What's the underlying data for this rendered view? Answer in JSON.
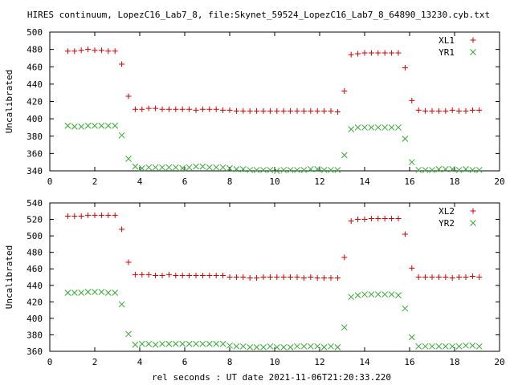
{
  "title": "HIRES continuum, LopezC16_Lab7_8, file:Skynet_59524_LopezC16_Lab7_8_64890_13230.cyb.txt",
  "xlabel": "rel seconds : UT date 2021-11-06T21:20:33.220",
  "colors": {
    "plus": "#d40000",
    "cross": "#33aa33"
  },
  "chart_data": [
    {
      "type": "scatter",
      "ylabel": "Uncalibrated",
      "xlim": [
        0,
        20
      ],
      "ylim": [
        340,
        500
      ],
      "xticks": [
        "0",
        "2",
        "4",
        "6",
        "8",
        "10",
        "12",
        "14",
        "16",
        "18",
        "20"
      ],
      "yticks": [
        "340",
        "360",
        "380",
        "400",
        "420",
        "440",
        "460",
        "480",
        "500"
      ],
      "legend_position": "top-right",
      "series": [
        {
          "name": "XL1",
          "marker": "plus",
          "points": [
            [
              0.8,
              478
            ],
            [
              1.1,
              478
            ],
            [
              1.4,
              479
            ],
            [
              1.7,
              480
            ],
            [
              2.0,
              479
            ],
            [
              2.3,
              479
            ],
            [
              2.6,
              478
            ],
            [
              2.9,
              478
            ],
            [
              3.2,
              463
            ],
            [
              3.5,
              426
            ],
            [
              3.8,
              411
            ],
            [
              4.1,
              411
            ],
            [
              4.4,
              412
            ],
            [
              4.7,
              412
            ],
            [
              5.0,
              411
            ],
            [
              5.3,
              411
            ],
            [
              5.6,
              411
            ],
            [
              5.9,
              411
            ],
            [
              6.2,
              411
            ],
            [
              6.5,
              410
            ],
            [
              6.8,
              411
            ],
            [
              7.1,
              411
            ],
            [
              7.4,
              411
            ],
            [
              7.7,
              410
            ],
            [
              8.0,
              410
            ],
            [
              8.3,
              409
            ],
            [
              8.6,
              409
            ],
            [
              8.9,
              409
            ],
            [
              9.2,
              409
            ],
            [
              9.5,
              409
            ],
            [
              9.8,
              409
            ],
            [
              10.1,
              409
            ],
            [
              10.4,
              409
            ],
            [
              10.7,
              409
            ],
            [
              11.0,
              409
            ],
            [
              11.3,
              409
            ],
            [
              11.6,
              409
            ],
            [
              11.9,
              409
            ],
            [
              12.2,
              409
            ],
            [
              12.5,
              409
            ],
            [
              12.8,
              408
            ],
            [
              13.1,
              432
            ],
            [
              13.4,
              474
            ],
            [
              13.7,
              475
            ],
            [
              14.0,
              476
            ],
            [
              14.3,
              476
            ],
            [
              14.6,
              476
            ],
            [
              14.9,
              476
            ],
            [
              15.2,
              476
            ],
            [
              15.5,
              476
            ],
            [
              15.8,
              459
            ],
            [
              16.1,
              421
            ],
            [
              16.4,
              410
            ],
            [
              16.7,
              409
            ],
            [
              17.0,
              409
            ],
            [
              17.3,
              409
            ],
            [
              17.6,
              409
            ],
            [
              17.9,
              410
            ],
            [
              18.2,
              409
            ],
            [
              18.5,
              409
            ],
            [
              18.8,
              410
            ],
            [
              19.1,
              410
            ]
          ]
        },
        {
          "name": "YR1",
          "marker": "cross",
          "points": [
            [
              0.8,
              392
            ],
            [
              1.1,
              391
            ],
            [
              1.4,
              391
            ],
            [
              1.7,
              392
            ],
            [
              2.0,
              392
            ],
            [
              2.3,
              392
            ],
            [
              2.6,
              392
            ],
            [
              2.9,
              392
            ],
            [
              3.2,
              381
            ],
            [
              3.5,
              354
            ],
            [
              3.8,
              345
            ],
            [
              4.1,
              343
            ],
            [
              4.4,
              344
            ],
            [
              4.7,
              344
            ],
            [
              5.0,
              344
            ],
            [
              5.3,
              344
            ],
            [
              5.6,
              344
            ],
            [
              5.9,
              343
            ],
            [
              6.2,
              344
            ],
            [
              6.5,
              345
            ],
            [
              6.8,
              345
            ],
            [
              7.1,
              344
            ],
            [
              7.4,
              344
            ],
            [
              7.7,
              344
            ],
            [
              8.0,
              343
            ],
            [
              8.3,
              342
            ],
            [
              8.6,
              342
            ],
            [
              8.9,
              341
            ],
            [
              9.2,
              341
            ],
            [
              9.5,
              341
            ],
            [
              9.8,
              341
            ],
            [
              10.1,
              340
            ],
            [
              10.4,
              341
            ],
            [
              10.7,
              341
            ],
            [
              11.0,
              341
            ],
            [
              11.3,
              341
            ],
            [
              11.6,
              342
            ],
            [
              11.9,
              342
            ],
            [
              12.2,
              341
            ],
            [
              12.5,
              341
            ],
            [
              12.8,
              341
            ],
            [
              13.1,
              358
            ],
            [
              13.4,
              388
            ],
            [
              13.7,
              390
            ],
            [
              14.0,
              390
            ],
            [
              14.3,
              390
            ],
            [
              14.6,
              390
            ],
            [
              14.9,
              390
            ],
            [
              15.2,
              390
            ],
            [
              15.5,
              390
            ],
            [
              15.8,
              377
            ],
            [
              16.1,
              350
            ],
            [
              16.4,
              341
            ],
            [
              16.7,
              341
            ],
            [
              17.0,
              341
            ],
            [
              17.3,
              342
            ],
            [
              17.6,
              342
            ],
            [
              17.9,
              342
            ],
            [
              18.2,
              341
            ],
            [
              18.5,
              342
            ],
            [
              18.8,
              341
            ],
            [
              19.1,
              341
            ]
          ]
        }
      ]
    },
    {
      "type": "scatter",
      "ylabel": "Uncalibrated",
      "xlim": [
        0,
        20
      ],
      "ylim": [
        360,
        540
      ],
      "xticks": [
        "0",
        "2",
        "4",
        "6",
        "8",
        "10",
        "12",
        "14",
        "16",
        "18",
        "20"
      ],
      "yticks": [
        "360",
        "380",
        "400",
        "420",
        "440",
        "460",
        "480",
        "500",
        "520",
        "540"
      ],
      "legend_position": "top-right",
      "series": [
        {
          "name": "XL2",
          "marker": "plus",
          "points": [
            [
              0.8,
              524
            ],
            [
              1.1,
              524
            ],
            [
              1.4,
              524
            ],
            [
              1.7,
              525
            ],
            [
              2.0,
              525
            ],
            [
              2.3,
              525
            ],
            [
              2.6,
              525
            ],
            [
              2.9,
              525
            ],
            [
              3.2,
              508
            ],
            [
              3.5,
              468
            ],
            [
              3.8,
              453
            ],
            [
              4.1,
              453
            ],
            [
              4.4,
              453
            ],
            [
              4.7,
              452
            ],
            [
              5.0,
              452
            ],
            [
              5.3,
              453
            ],
            [
              5.6,
              452
            ],
            [
              5.9,
              452
            ],
            [
              6.2,
              452
            ],
            [
              6.5,
              452
            ],
            [
              6.8,
              452
            ],
            [
              7.1,
              452
            ],
            [
              7.4,
              452
            ],
            [
              7.7,
              452
            ],
            [
              8.0,
              450
            ],
            [
              8.3,
              450
            ],
            [
              8.6,
              450
            ],
            [
              8.9,
              449
            ],
            [
              9.2,
              449
            ],
            [
              9.5,
              450
            ],
            [
              9.8,
              450
            ],
            [
              10.1,
              450
            ],
            [
              10.4,
              450
            ],
            [
              10.7,
              450
            ],
            [
              11.0,
              450
            ],
            [
              11.3,
              449
            ],
            [
              11.6,
              450
            ],
            [
              11.9,
              449
            ],
            [
              12.2,
              449
            ],
            [
              12.5,
              449
            ],
            [
              12.8,
              449
            ],
            [
              13.1,
              474
            ],
            [
              13.4,
              518
            ],
            [
              13.7,
              520
            ],
            [
              14.0,
              520
            ],
            [
              14.3,
              521
            ],
            [
              14.6,
              521
            ],
            [
              14.9,
              521
            ],
            [
              15.2,
              521
            ],
            [
              15.5,
              521
            ],
            [
              15.8,
              502
            ],
            [
              16.1,
              461
            ],
            [
              16.4,
              450
            ],
            [
              16.7,
              450
            ],
            [
              17.0,
              450
            ],
            [
              17.3,
              450
            ],
            [
              17.6,
              450
            ],
            [
              17.9,
              449
            ],
            [
              18.2,
              450
            ],
            [
              18.5,
              450
            ],
            [
              18.8,
              451
            ],
            [
              19.1,
              450
            ]
          ]
        },
        {
          "name": "YR2",
          "marker": "cross",
          "points": [
            [
              0.8,
              431
            ],
            [
              1.1,
              431
            ],
            [
              1.4,
              431
            ],
            [
              1.7,
              432
            ],
            [
              2.0,
              432
            ],
            [
              2.3,
              432
            ],
            [
              2.6,
              431
            ],
            [
              2.9,
              431
            ],
            [
              3.2,
              417
            ],
            [
              3.5,
              381
            ],
            [
              3.8,
              368
            ],
            [
              4.1,
              369
            ],
            [
              4.4,
              369
            ],
            [
              4.7,
              368
            ],
            [
              5.0,
              369
            ],
            [
              5.3,
              369
            ],
            [
              5.6,
              369
            ],
            [
              5.9,
              369
            ],
            [
              6.2,
              369
            ],
            [
              6.5,
              369
            ],
            [
              6.8,
              369
            ],
            [
              7.1,
              369
            ],
            [
              7.4,
              369
            ],
            [
              7.7,
              369
            ],
            [
              8.0,
              367
            ],
            [
              8.3,
              366
            ],
            [
              8.6,
              366
            ],
            [
              8.9,
              365
            ],
            [
              9.2,
              365
            ],
            [
              9.5,
              365
            ],
            [
              9.8,
              366
            ],
            [
              10.1,
              365
            ],
            [
              10.4,
              365
            ],
            [
              10.7,
              365
            ],
            [
              11.0,
              366
            ],
            [
              11.3,
              366
            ],
            [
              11.6,
              366
            ],
            [
              11.9,
              366
            ],
            [
              12.2,
              365
            ],
            [
              12.5,
              366
            ],
            [
              12.8,
              365
            ],
            [
              13.1,
              389
            ],
            [
              13.4,
              426
            ],
            [
              13.7,
              428
            ],
            [
              14.0,
              429
            ],
            [
              14.3,
              429
            ],
            [
              14.6,
              429
            ],
            [
              14.9,
              429
            ],
            [
              15.2,
              429
            ],
            [
              15.5,
              428
            ],
            [
              15.8,
              412
            ],
            [
              16.1,
              377
            ],
            [
              16.4,
              366
            ],
            [
              16.7,
              366
            ],
            [
              17.0,
              366
            ],
            [
              17.3,
              366
            ],
            [
              17.6,
              366
            ],
            [
              17.9,
              366
            ],
            [
              18.2,
              366
            ],
            [
              18.5,
              367
            ],
            [
              18.8,
              367
            ],
            [
              19.1,
              366
            ]
          ]
        }
      ]
    }
  ]
}
